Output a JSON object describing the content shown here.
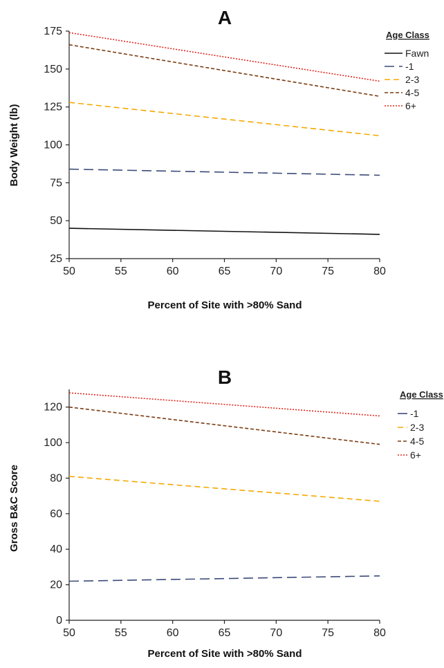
{
  "chart_data": [
    {
      "type": "line",
      "title": "A",
      "xlabel": "Percent of Site with >80% Sand",
      "ylabel": "Body Weight (lb)",
      "xlim": [
        50,
        80
      ],
      "ylim": [
        25,
        175
      ],
      "xticks": [
        50,
        55,
        60,
        65,
        70,
        75,
        80
      ],
      "yticks": [
        25,
        50,
        75,
        100,
        125,
        150,
        175
      ],
      "grid": false,
      "legend": {
        "title": "Age Class",
        "position": "top-right"
      },
      "x": [
        50,
        80
      ],
      "series": [
        {
          "name": "Fawn",
          "values": [
            45,
            41
          ],
          "color": "#111111",
          "dash": ""
        },
        {
          "name": "-1",
          "values": [
            84,
            80
          ],
          "color": "#3c4a78",
          "dash": "14,7"
        },
        {
          "name": "2-3",
          "values": [
            128,
            106
          ],
          "color": "#f5a800",
          "dash": "8,5"
        },
        {
          "name": "4-5",
          "values": [
            166,
            132
          ],
          "color": "#7a3a10",
          "dash": "5,3"
        },
        {
          "name": "6+",
          "values": [
            174,
            142
          ],
          "color": "#e0251b",
          "dash": "2,2"
        }
      ]
    },
    {
      "type": "line",
      "title": "B",
      "xlabel": "Percent of Site with >80% Sand",
      "ylabel": "Gross B&C Score",
      "xlim": [
        50,
        80
      ],
      "ylim": [
        0,
        130
      ],
      "xticks": [
        50,
        55,
        60,
        65,
        70,
        75,
        80
      ],
      "yticks": [
        0,
        20,
        40,
        60,
        80,
        100,
        120
      ],
      "grid": false,
      "legend": {
        "title": "Age Class",
        "position": "top-right"
      },
      "x": [
        50,
        80
      ],
      "series": [
        {
          "name": "-1",
          "values": [
            22,
            25
          ],
          "color": "#3c4a78",
          "dash": "14,7"
        },
        {
          "name": "2-3",
          "values": [
            81,
            67
          ],
          "color": "#f5a800",
          "dash": "8,5"
        },
        {
          "name": "4-5",
          "values": [
            120,
            99
          ],
          "color": "#7a3a10",
          "dash": "5,3"
        },
        {
          "name": "6+",
          "values": [
            128,
            115
          ],
          "color": "#e0251b",
          "dash": "2,2"
        }
      ]
    }
  ]
}
